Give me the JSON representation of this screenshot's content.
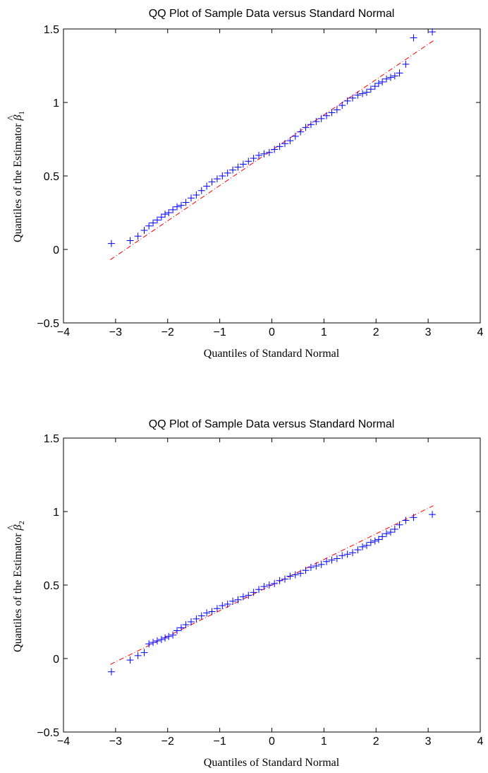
{
  "chart_data": [
    {
      "type": "scatter",
      "title": "QQ Plot of Sample Data versus Standard Normal",
      "xlabel": "Quantiles of Standard Normal",
      "ylabel": {
        "text": "Quantiles of the Estimator ",
        "symbol": "β",
        "hat": "^",
        "subscript": "1"
      },
      "xlim": [
        -4,
        4
      ],
      "ylim": [
        -0.5,
        1.5
      ],
      "xticks": [
        "−4",
        "−3",
        "−2",
        "−1",
        "0",
        "1",
        "2",
        "3",
        "4"
      ],
      "yticks": [
        "−0.5",
        "0",
        "0.5",
        "1",
        "1.5"
      ],
      "grid": false,
      "colors": {
        "points": "#0000ff",
        "reference_line": "#ff0000"
      },
      "reference_line": {
        "x": [
          -3.1,
          3.1
        ],
        "y": [
          -0.07,
          1.42
        ]
      },
      "series": [
        {
          "marker": "+",
          "x": [
            -3.08,
            -2.72,
            -2.57,
            -2.45,
            -2.36,
            -2.28,
            -2.2,
            -2.12,
            -2.05,
            -1.98,
            -1.9,
            -1.82,
            -1.74,
            -1.65,
            -1.55,
            -1.45,
            -1.35,
            -1.25,
            -1.15,
            -1.05,
            -0.95,
            -0.85,
            -0.75,
            -0.65,
            -0.55,
            -0.45,
            -0.35,
            -0.25,
            -0.15,
            -0.05,
            0.05,
            0.15,
            0.25,
            0.35,
            0.45,
            0.55,
            0.65,
            0.75,
            0.85,
            0.95,
            1.05,
            1.15,
            1.25,
            1.35,
            1.45,
            1.55,
            1.65,
            1.74,
            1.82,
            1.9,
            1.98,
            2.05,
            2.12,
            2.2,
            2.28,
            2.36,
            2.45,
            2.57,
            2.72,
            3.08
          ],
          "y": [
            0.04,
            0.06,
            0.09,
            0.13,
            0.16,
            0.18,
            0.2,
            0.22,
            0.24,
            0.25,
            0.27,
            0.29,
            0.3,
            0.32,
            0.35,
            0.37,
            0.4,
            0.43,
            0.46,
            0.48,
            0.5,
            0.52,
            0.54,
            0.56,
            0.58,
            0.6,
            0.62,
            0.64,
            0.65,
            0.66,
            0.68,
            0.7,
            0.72,
            0.74,
            0.77,
            0.8,
            0.83,
            0.85,
            0.87,
            0.89,
            0.91,
            0.93,
            0.95,
            0.98,
            1.01,
            1.03,
            1.05,
            1.06,
            1.07,
            1.09,
            1.11,
            1.13,
            1.14,
            1.16,
            1.17,
            1.18,
            1.2,
            1.26,
            1.44,
            1.48
          ]
        }
      ]
    },
    {
      "type": "scatter",
      "title": "QQ Plot of Sample Data versus Standard Normal",
      "xlabel": "Quantiles of Standard Normal",
      "ylabel": {
        "text": "Quantiles of the Estimator ",
        "symbol": "β",
        "hat": "^",
        "subscript": "2"
      },
      "xlim": [
        -4,
        4
      ],
      "ylim": [
        -0.5,
        1.5
      ],
      "xticks": [
        "−4",
        "−3",
        "−2",
        "−1",
        "0",
        "1",
        "2",
        "3",
        "4"
      ],
      "yticks": [
        "−0.5",
        "0",
        "0.5",
        "1",
        "1.5"
      ],
      "grid": false,
      "colors": {
        "points": "#0000ff",
        "reference_line": "#ff0000"
      },
      "reference_line": {
        "x": [
          -3.1,
          3.1
        ],
        "y": [
          -0.04,
          1.04
        ]
      },
      "series": [
        {
          "marker": "+",
          "x": [
            -3.08,
            -2.72,
            -2.57,
            -2.45,
            -2.36,
            -2.28,
            -2.2,
            -2.12,
            -2.05,
            -1.98,
            -1.9,
            -1.82,
            -1.74,
            -1.65,
            -1.55,
            -1.45,
            -1.35,
            -1.25,
            -1.15,
            -1.05,
            -0.95,
            -0.85,
            -0.75,
            -0.65,
            -0.55,
            -0.45,
            -0.35,
            -0.25,
            -0.15,
            -0.05,
            0.05,
            0.15,
            0.25,
            0.35,
            0.45,
            0.55,
            0.65,
            0.75,
            0.85,
            0.95,
            1.05,
            1.15,
            1.25,
            1.35,
            1.45,
            1.55,
            1.65,
            1.74,
            1.82,
            1.9,
            1.98,
            2.05,
            2.12,
            2.2,
            2.28,
            2.36,
            2.45,
            2.57,
            2.72,
            3.08
          ],
          "y": [
            -0.09,
            -0.01,
            0.02,
            0.04,
            0.1,
            0.11,
            0.12,
            0.13,
            0.14,
            0.15,
            0.16,
            0.19,
            0.21,
            0.23,
            0.25,
            0.27,
            0.29,
            0.31,
            0.32,
            0.34,
            0.36,
            0.37,
            0.39,
            0.4,
            0.42,
            0.43,
            0.45,
            0.47,
            0.49,
            0.5,
            0.51,
            0.53,
            0.54,
            0.56,
            0.57,
            0.58,
            0.6,
            0.62,
            0.63,
            0.64,
            0.66,
            0.67,
            0.68,
            0.7,
            0.71,
            0.72,
            0.74,
            0.76,
            0.77,
            0.79,
            0.8,
            0.81,
            0.83,
            0.85,
            0.86,
            0.88,
            0.91,
            0.94,
            0.96,
            0.98
          ]
        }
      ]
    }
  ]
}
